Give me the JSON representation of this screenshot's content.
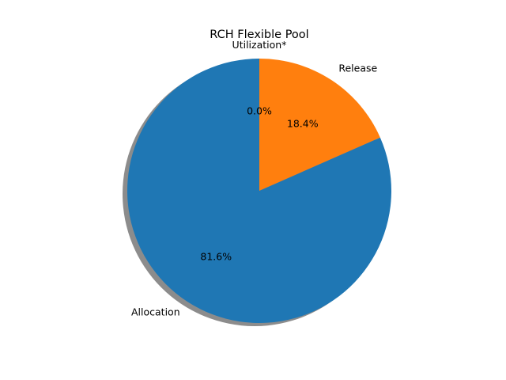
{
  "chart_data": {
    "type": "pie",
    "title": "RCH Flexible Pool",
    "categories": [
      "Utilization*",
      "Release",
      "Allocation"
    ],
    "values": [
      0.0,
      18.4,
      81.6
    ],
    "percent_labels": [
      "0.0%",
      "18.4%",
      "81.6%"
    ],
    "colors": [
      "#2ca02c",
      "#ff7f0e",
      "#1f77b4"
    ],
    "start_angle_deg": 90,
    "direction": "clockwise",
    "shadow": true,
    "legend": "none"
  }
}
